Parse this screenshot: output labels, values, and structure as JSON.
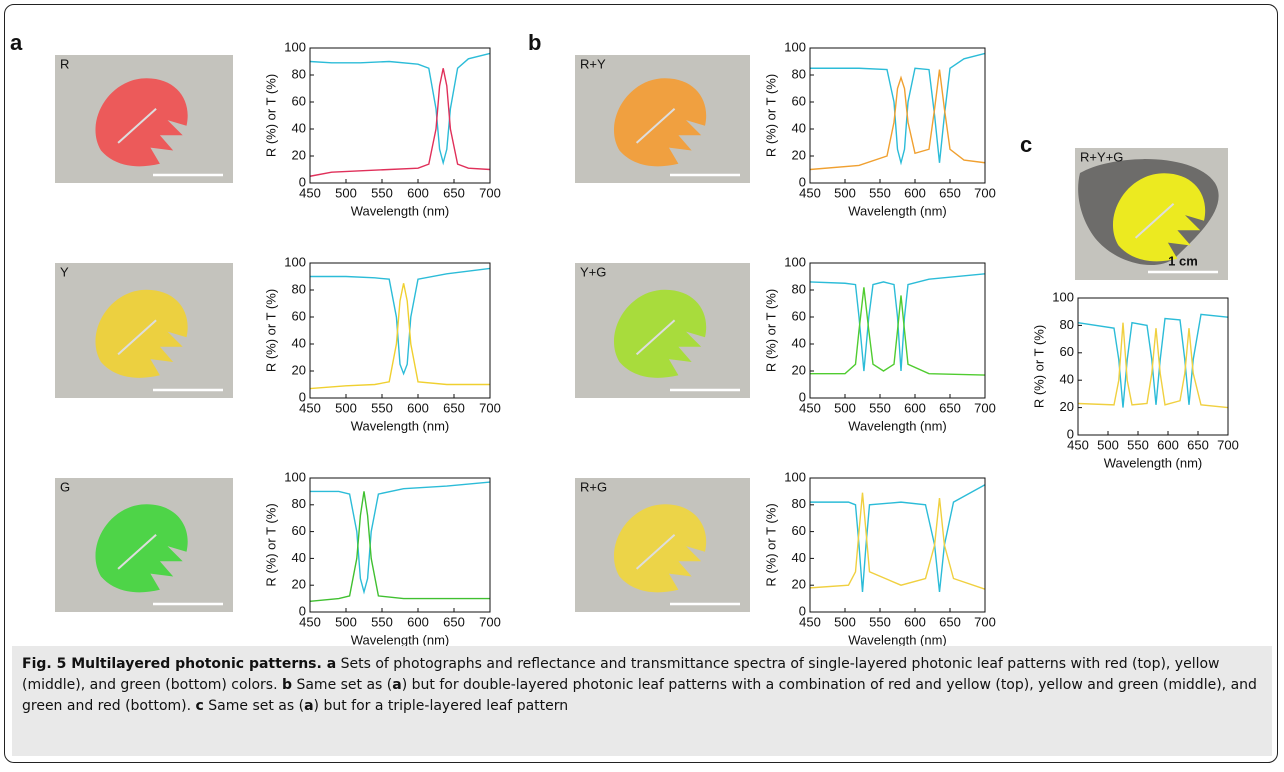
{
  "panel_labels": [
    "a",
    "b",
    "c"
  ],
  "photos": [
    {
      "label": "R",
      "color": "#ec5a5a"
    },
    {
      "label": "Y",
      "color": "#ecd040"
    },
    {
      "label": "G",
      "color": "#4ed448"
    },
    {
      "label": "R+Y",
      "color": "#f0a040"
    },
    {
      "label": "Y+G",
      "color": "#a8dc3c"
    },
    {
      "label": "R+G",
      "color": "#ecd448"
    },
    {
      "label": "R+Y+G",
      "color": "#ecea20",
      "scale_label": "1 cm"
    }
  ],
  "chart_data": [
    {
      "type": "line",
      "ylabel": "R (%) or T (%)",
      "xlabel": "Wavelength (nm)",
      "x": [
        450,
        480,
        520,
        560,
        600,
        615,
        625,
        630,
        635,
        640,
        645,
        655,
        670,
        700
      ],
      "xlim": [
        450,
        700
      ],
      "xticks": [
        450,
        500,
        550,
        600,
        650,
        700
      ],
      "ylim": [
        0,
        100
      ],
      "yticks": [
        0,
        20,
        40,
        60,
        80,
        100
      ],
      "series": [
        {
          "color": "#2cbcd8",
          "values": [
            90,
            89,
            89,
            90,
            88,
            85,
            55,
            25,
            15,
            25,
            55,
            85,
            92,
            96
          ]
        },
        {
          "color": "#e0305a",
          "values": [
            5,
            8,
            9,
            10,
            11,
            14,
            40,
            72,
            85,
            72,
            40,
            14,
            11,
            10
          ]
        }
      ]
    },
    {
      "type": "line",
      "ylabel": "R (%) or T (%)",
      "xlabel": "Wavelength (nm)",
      "x": [
        450,
        500,
        540,
        560,
        570,
        575,
        580,
        585,
        590,
        600,
        640,
        700
      ],
      "xlim": [
        450,
        700
      ],
      "xticks": [
        450,
        500,
        550,
        600,
        650,
        700
      ],
      "ylim": [
        0,
        100
      ],
      "yticks": [
        0,
        20,
        40,
        60,
        80,
        100
      ],
      "series": [
        {
          "color": "#2cbcd8",
          "values": [
            90,
            90,
            89,
            88,
            60,
            25,
            18,
            25,
            60,
            88,
            92,
            96
          ]
        },
        {
          "color": "#f0d030",
          "values": [
            7,
            9,
            10,
            12,
            40,
            72,
            85,
            72,
            40,
            12,
            10,
            10
          ]
        }
      ]
    },
    {
      "type": "line",
      "ylabel": "R (%) or T (%)",
      "xlabel": "Wavelength (nm)",
      "x": [
        450,
        490,
        505,
        515,
        520,
        525,
        530,
        535,
        545,
        580,
        640,
        700
      ],
      "xlim": [
        450,
        700
      ],
      "xticks": [
        450,
        500,
        550,
        600,
        650,
        700
      ],
      "ylim": [
        0,
        100
      ],
      "yticks": [
        0,
        20,
        40,
        60,
        80,
        100
      ],
      "series": [
        {
          "color": "#2cbcd8",
          "values": [
            90,
            90,
            88,
            60,
            25,
            15,
            25,
            60,
            88,
            92,
            94,
            97
          ]
        },
        {
          "color": "#40c030",
          "values": [
            8,
            10,
            12,
            40,
            72,
            90,
            72,
            40,
            12,
            10,
            10,
            10
          ]
        }
      ]
    },
    {
      "type": "line",
      "ylabel": "R (%) or T (%)",
      "xlabel": "Wavelength (nm)",
      "x": [
        450,
        520,
        560,
        570,
        575,
        580,
        585,
        590,
        600,
        620,
        628,
        635,
        642,
        650,
        670,
        700
      ],
      "xlim": [
        450,
        700
      ],
      "xticks": [
        450,
        500,
        550,
        600,
        650,
        700
      ],
      "ylim": [
        0,
        100
      ],
      "yticks": [
        0,
        20,
        40,
        60,
        80,
        100
      ],
      "series": [
        {
          "color": "#2cbcd8",
          "values": [
            85,
            85,
            84,
            60,
            25,
            15,
            25,
            60,
            85,
            84,
            50,
            15,
            50,
            85,
            92,
            96
          ]
        },
        {
          "color": "#f0a030",
          "values": [
            10,
            13,
            20,
            45,
            70,
            78,
            70,
            45,
            22,
            25,
            55,
            84,
            55,
            25,
            17,
            15
          ]
        }
      ]
    },
    {
      "type": "line",
      "ylabel": "R (%) or T (%)",
      "xlabel": "Wavelength (nm)",
      "x": [
        450,
        500,
        515,
        520,
        527,
        534,
        540,
        555,
        570,
        575,
        580,
        585,
        590,
        620,
        700
      ],
      "xlim": [
        450,
        700
      ],
      "xticks": [
        450,
        500,
        550,
        600,
        650,
        700
      ],
      "ylim": [
        0,
        100
      ],
      "yticks": [
        0,
        20,
        40,
        60,
        80,
        100
      ],
      "series": [
        {
          "color": "#2cbcd8",
          "values": [
            86,
            85,
            84,
            60,
            20,
            60,
            84,
            86,
            84,
            60,
            20,
            60,
            84,
            88,
            92
          ]
        },
        {
          "color": "#50cc30",
          "values": [
            18,
            18,
            25,
            50,
            82,
            50,
            25,
            20,
            25,
            50,
            76,
            50,
            25,
            18,
            17
          ]
        }
      ]
    },
    {
      "type": "line",
      "ylabel": "R (%) or T (%)",
      "xlabel": "Wavelength (nm)",
      "x": [
        450,
        505,
        515,
        520,
        525,
        530,
        535,
        580,
        615,
        628,
        635,
        642,
        655,
        700
      ],
      "xlim": [
        450,
        700
      ],
      "xticks": [
        450,
        500,
        550,
        600,
        650,
        700
      ],
      "ylim": [
        0,
        100
      ],
      "yticks": [
        0,
        20,
        40,
        60,
        80,
        100
      ],
      "series": [
        {
          "color": "#2cbcd8",
          "values": [
            82,
            82,
            80,
            50,
            15,
            50,
            80,
            82,
            80,
            50,
            15,
            50,
            82,
            95
          ]
        },
        {
          "color": "#f0d040",
          "values": [
            18,
            20,
            30,
            60,
            89,
            60,
            30,
            20,
            25,
            50,
            85,
            50,
            25,
            17
          ]
        }
      ]
    },
    {
      "type": "line",
      "ylabel": "R (%) or T (%)",
      "xlabel": "Wavelength (nm)",
      "x": [
        450,
        510,
        518,
        525,
        532,
        540,
        565,
        573,
        580,
        587,
        595,
        620,
        628,
        635,
        642,
        655,
        700
      ],
      "xlim": [
        450,
        700
      ],
      "xticks": [
        450,
        500,
        550,
        600,
        650,
        700
      ],
      "ylim": [
        0,
        100
      ],
      "yticks": [
        0,
        20,
        40,
        60,
        80,
        100
      ],
      "series": [
        {
          "color": "#2cbcd8",
          "values": [
            82,
            78,
            55,
            20,
            55,
            82,
            80,
            55,
            22,
            55,
            85,
            84,
            55,
            22,
            55,
            88,
            86
          ]
        },
        {
          "color": "#f0d040",
          "values": [
            23,
            22,
            40,
            82,
            40,
            22,
            23,
            45,
            78,
            45,
            22,
            25,
            45,
            78,
            45,
            22,
            20
          ]
        }
      ]
    }
  ],
  "caption": [
    {
      "text": "Fig. 5 Multilayered photonic patterns. a",
      "bold": true
    },
    {
      "text": " Sets of photographs and reflectance and transmittance spectra of single-layered photonic leaf patterns with red (top), yellow (middle), and green (bottom) colors. ",
      "bold": false
    },
    {
      "text": "b",
      "bold": true
    },
    {
      "text": " Same set as (",
      "bold": false
    },
    {
      "text": "a",
      "bold": true
    },
    {
      "text": ") but for double-layered photonic leaf patterns with a combination of red and yellow (top), yellow and green (middle), and green and red (bottom). ",
      "bold": false
    },
    {
      "text": "c",
      "bold": true
    },
    {
      "text": " Same set as (",
      "bold": false
    },
    {
      "text": "a",
      "bold": true
    },
    {
      "text": ") but for a triple-layered leaf pattern",
      "bold": false
    }
  ]
}
